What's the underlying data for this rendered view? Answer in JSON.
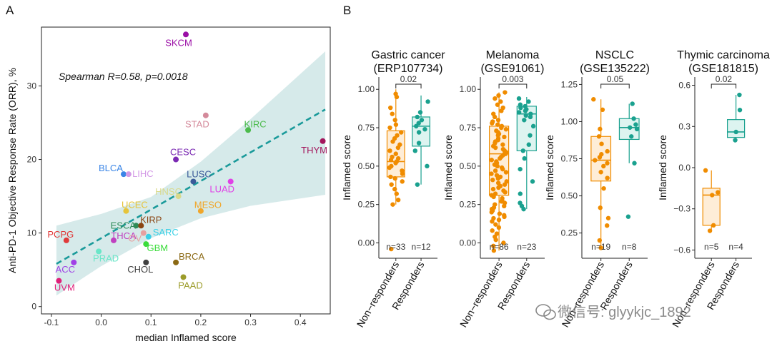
{
  "panels": {
    "a": "A",
    "b": "B"
  },
  "chart_data": [
    {
      "type": "scatter",
      "xlabel": "median Inflamed score",
      "ylabel": "Anti-PD-1 Objective Response Rate (ORR), %",
      "annotation": "Spearman R=0.58, p=0.0018",
      "xlim": [
        -0.12,
        0.46
      ],
      "ylim": [
        -1,
        38
      ],
      "xticks": [
        "-0.1",
        "0.0",
        "0.1",
        "0.2",
        "0.3",
        "0.4"
      ],
      "xtick_values": [
        -0.1,
        0.0,
        0.1,
        0.2,
        0.3,
        0.4
      ],
      "yticks": [
        "0",
        "10",
        "20",
        "30"
      ],
      "ytick_values": [
        0,
        10,
        20,
        30
      ],
      "fit": {
        "x0": -0.09,
        "y0": 5.8,
        "x1": 0.45,
        "y1": 26.8
      },
      "band_lower": [
        [
          -0.09,
          1.5
        ],
        [
          0.0,
          5.5
        ],
        [
          0.1,
          9.3
        ],
        [
          0.2,
          12.0
        ],
        [
          0.3,
          13.7
        ],
        [
          0.45,
          15.2
        ]
      ],
      "band_upper": [
        [
          -0.09,
          11.0
        ],
        [
          0.0,
          12.6
        ],
        [
          0.1,
          14.9
        ],
        [
          0.2,
          19.7
        ],
        [
          0.3,
          25.5
        ],
        [
          0.45,
          34.7
        ]
      ],
      "points": [
        {
          "label": "SKCM",
          "x": 0.17,
          "y": 37,
          "color": "#9b0fa6"
        },
        {
          "label": "STAD",
          "x": 0.21,
          "y": 26,
          "color": "#d48a9b"
        },
        {
          "label": "KIRC",
          "x": 0.295,
          "y": 24,
          "color": "#4cbb4c"
        },
        {
          "label": "THYM",
          "x": 0.445,
          "y": 22.5,
          "color": "#a3165c"
        },
        {
          "label": "CESC",
          "x": 0.15,
          "y": 20,
          "color": "#7b2ab3"
        },
        {
          "label": "BLCA",
          "x": 0.045,
          "y": 18,
          "color": "#3a85e6"
        },
        {
          "label": "LIHC",
          "x": 0.055,
          "y": 18,
          "color": "#d39ae6"
        },
        {
          "label": "LUSC",
          "x": 0.185,
          "y": 17,
          "color": "#3b5a99"
        },
        {
          "label": "LUAD",
          "x": 0.26,
          "y": 17,
          "color": "#e040e6"
        },
        {
          "label": "HNSC",
          "x": 0.155,
          "y": 15,
          "color": "#d9d98a"
        },
        {
          "label": "UCEC",
          "x": 0.05,
          "y": 13,
          "color": "#e6c43a"
        },
        {
          "label": "MESO",
          "x": 0.2,
          "y": 13,
          "color": "#f0a62a"
        },
        {
          "label": "ESCA",
          "x": 0.07,
          "y": 11,
          "color": "#2e8b57"
        },
        {
          "label": "KIRP",
          "x": 0.08,
          "y": 11,
          "color": "#8b4513"
        },
        {
          "label": "PCPG",
          "x": -0.07,
          "y": 9,
          "color": "#e03a3a"
        },
        {
          "label": "THCA",
          "x": 0.025,
          "y": 9,
          "color": "#c040c0"
        },
        {
          "label": "SARC",
          "x": 0.095,
          "y": 9.5,
          "color": "#3ad0e6"
        },
        {
          "label": "OV",
          "x": 0.085,
          "y": 10,
          "color": "#e6a0a0"
        },
        {
          "label": "GBM",
          "x": 0.09,
          "y": 8.5,
          "color": "#3adc3a"
        },
        {
          "label": "PRAD",
          "x": -0.005,
          "y": 7.5,
          "color": "#6ae6c8"
        },
        {
          "label": "BRCA",
          "x": 0.15,
          "y": 6,
          "color": "#8b6914"
        },
        {
          "label": "CHOL",
          "x": 0.09,
          "y": 6,
          "color": "#404040"
        },
        {
          "label": "ACC",
          "x": -0.055,
          "y": 6,
          "color": "#a040e6"
        },
        {
          "label": "PAAD",
          "x": 0.165,
          "y": 4,
          "color": "#9c9c2a"
        },
        {
          "label": "UVM",
          "x": -0.085,
          "y": 3.5,
          "color": "#e0207a"
        }
      ]
    },
    {
      "type": "box",
      "title": [
        "Gastric cancer",
        "(ERP107734)"
      ],
      "ylabel": "Inflamed score",
      "ylim": [
        -0.1,
        1.08
      ],
      "yticks": [
        "0.00",
        "0.25",
        "0.50",
        "0.75",
        "1.00"
      ],
      "ytick_values": [
        0,
        0.25,
        0.5,
        0.75,
        1.0
      ],
      "pvalue": "0.02",
      "groups": [
        {
          "name": "Non−responders",
          "n": "n=33",
          "color": "#f08c00",
          "fill": "#fde1bd",
          "q1": 0.43,
          "median": 0.53,
          "q3": 0.73,
          "wlo": 0.25,
          "whi": 1.0,
          "points": [
            0.97,
            0.95,
            0.88,
            0.84,
            0.8,
            0.77,
            0.75,
            0.72,
            0.7,
            0.68,
            0.66,
            0.64,
            0.62,
            0.6,
            0.58,
            0.56,
            0.55,
            0.54,
            0.53,
            0.52,
            0.5,
            0.49,
            0.47,
            0.45,
            0.43,
            0.42,
            0.4,
            0.38,
            0.35,
            0.32,
            0.28,
            0.25,
            -0.04
          ]
        },
        {
          "name": "Responders",
          "n": "n=12",
          "color": "#1aa18f",
          "fill": "#c7ece6",
          "q1": 0.63,
          "median": 0.76,
          "q3": 0.82,
          "wlo": 0.38,
          "whi": 0.96,
          "points": [
            0.92,
            0.85,
            0.82,
            0.8,
            0.78,
            0.76,
            0.74,
            0.72,
            0.65,
            0.6,
            0.5,
            0.38
          ]
        }
      ]
    },
    {
      "type": "box",
      "title": [
        "Melanoma",
        "(GSE91061)"
      ],
      "ylabel": "Inflamed score",
      "ylim": [
        -0.1,
        1.08
      ],
      "yticks": [
        "0.00",
        "0.25",
        "0.50",
        "0.75",
        "1.00"
      ],
      "ytick_values": [
        0,
        0.25,
        0.5,
        0.75,
        1.0
      ],
      "pvalue": "0.003",
      "groups": [
        {
          "name": "Non−responders",
          "n": "n=86",
          "color": "#f08c00",
          "fill": "#fde1bd",
          "q1": 0.31,
          "median": 0.58,
          "q3": 0.76,
          "wlo": -0.05,
          "whi": 0.98,
          "points": [
            0.98,
            0.96,
            0.94,
            0.92,
            0.9,
            0.88,
            0.86,
            0.84,
            0.82,
            0.8,
            0.79,
            0.78,
            0.77,
            0.76,
            0.75,
            0.74,
            0.73,
            0.72,
            0.71,
            0.7,
            0.69,
            0.68,
            0.67,
            0.66,
            0.65,
            0.64,
            0.63,
            0.62,
            0.61,
            0.6,
            0.59,
            0.58,
            0.58,
            0.57,
            0.56,
            0.55,
            0.54,
            0.53,
            0.52,
            0.51,
            0.5,
            0.49,
            0.48,
            0.47,
            0.46,
            0.45,
            0.44,
            0.43,
            0.42,
            0.41,
            0.4,
            0.39,
            0.38,
            0.37,
            0.36,
            0.35,
            0.34,
            0.33,
            0.32,
            0.31,
            0.3,
            0.29,
            0.28,
            0.27,
            0.26,
            0.25,
            0.24,
            0.23,
            0.22,
            0.21,
            0.2,
            0.19,
            0.18,
            0.17,
            0.16,
            0.15,
            0.14,
            0.12,
            0.1,
            0.08,
            0.06,
            0.04,
            0.02,
            0.0,
            -0.02,
            -0.05
          ]
        },
        {
          "name": "Responders",
          "n": "n=23",
          "color": "#1aa18f",
          "fill": "#c7ece6",
          "q1": 0.6,
          "median": 0.84,
          "q3": 0.89,
          "wlo": 0.22,
          "whi": 0.95,
          "points": [
            0.94,
            0.92,
            0.9,
            0.89,
            0.88,
            0.87,
            0.86,
            0.85,
            0.84,
            0.83,
            0.82,
            0.8,
            0.76,
            0.7,
            0.64,
            0.6,
            0.55,
            0.48,
            0.4,
            0.32,
            0.26,
            0.24,
            0.22
          ]
        }
      ]
    },
    {
      "type": "box",
      "title": [
        "NSCLC",
        "(GSE135222)"
      ],
      "ylabel": "Inflamed score",
      "ylim": [
        0.08,
        1.3
      ],
      "yticks": [
        "0.25",
        "0.50",
        "0.75",
        "1.00",
        "1.25"
      ],
      "ytick_values": [
        0.25,
        0.5,
        0.75,
        1.0,
        1.25
      ],
      "pvalue": "0.05",
      "groups": [
        {
          "name": "Non−responders",
          "n": "n=19",
          "color": "#f08c00",
          "fill": "#fde1bd",
          "q1": 0.6,
          "median": 0.74,
          "q3": 0.9,
          "wlo": 0.15,
          "whi": 1.15,
          "points": [
            1.15,
            1.08,
            0.95,
            0.9,
            0.85,
            0.8,
            0.78,
            0.76,
            0.74,
            0.72,
            0.7,
            0.66,
            0.62,
            0.55,
            0.42,
            0.35,
            0.3,
            0.2,
            0.15
          ]
        },
        {
          "name": "Responders",
          "n": "n=8",
          "color": "#1aa18f",
          "fill": "#c7ece6",
          "q1": 0.88,
          "median": 0.96,
          "q3": 1.02,
          "wlo": 0.72,
          "whi": 1.12,
          "points": [
            1.12,
            1.02,
            0.98,
            0.96,
            0.95,
            0.9,
            0.72,
            0.36
          ]
        }
      ]
    },
    {
      "type": "box",
      "title": [
        "Thymic carcinoma",
        "(GSE181815)"
      ],
      "ylabel": "Inflamed score",
      "ylim": [
        -0.66,
        0.66
      ],
      "yticks": [
        "−0.6",
        "−0.3",
        "0.0",
        "0.3",
        "0.6"
      ],
      "ytick_values": [
        -0.6,
        -0.3,
        0.0,
        0.3,
        0.6
      ],
      "pvalue": "0.02",
      "groups": [
        {
          "name": "Non−responders",
          "n": "n=5",
          "color": "#f08c00",
          "fill": "#fde1bd",
          "q1": -0.42,
          "median": -0.2,
          "q3": -0.15,
          "wlo": -0.46,
          "whi": -0.02,
          "points": [
            -0.02,
            -0.18,
            -0.2,
            -0.42,
            -0.46
          ]
        },
        {
          "name": "Responders",
          "n": "n=4",
          "color": "#1aa18f",
          "fill": "#c7ece6",
          "q1": 0.22,
          "median": 0.26,
          "q3": 0.35,
          "wlo": 0.2,
          "whi": 0.53,
          "points": [
            0.53,
            0.42,
            0.26,
            0.2
          ]
        }
      ]
    }
  ],
  "watermark": "微信号: glyykjc_1892"
}
